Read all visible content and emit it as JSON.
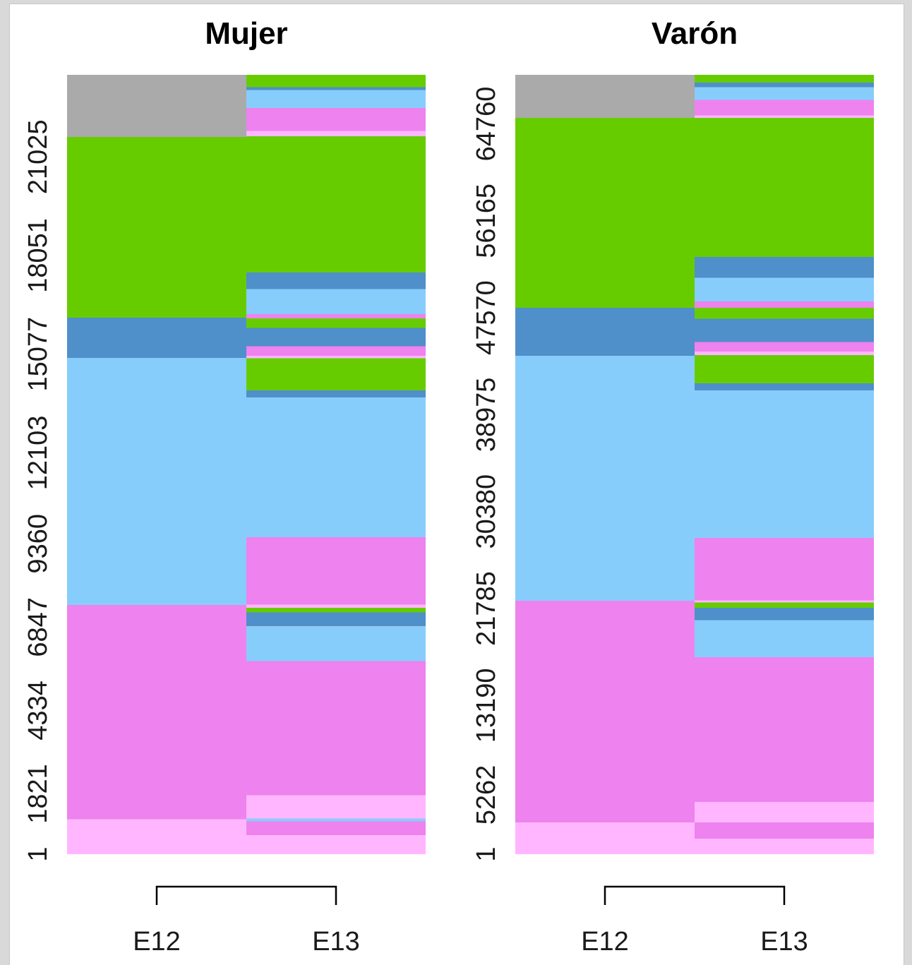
{
  "colors": {
    "gray": "#aaaaaa",
    "green": "#66cc00",
    "blue": "#4f8fca",
    "lightblue": "#87cdfc",
    "pink": "#ee82ee",
    "lightpink": "#ffb6ff"
  },
  "chart_data": [
    {
      "type": "sequence-index-plot",
      "title": "Mujer",
      "categories": [
        "E12",
        "E13"
      ],
      "ylim": [
        1,
        23499
      ],
      "y_ticks": [
        "1",
        "1821",
        "4334",
        "6847",
        "9360",
        "12103",
        "15077",
        "18051",
        "21025"
      ],
      "grid": false,
      "columns": [
        {
          "label": "E12",
          "segments": [
            {
              "state": "lightpink",
              "from": 1,
              "to": 1050
            },
            {
              "state": "pink",
              "from": 1050,
              "to": 7510
            },
            {
              "state": "lightblue",
              "from": 7510,
              "to": 14960
            },
            {
              "state": "blue",
              "from": 14960,
              "to": 16180
            },
            {
              "state": "green",
              "from": 16180,
              "to": 21630
            },
            {
              "state": "gray",
              "from": 21630,
              "to": 23499
            }
          ]
        },
        {
          "label": "E13",
          "segments": [
            {
              "state": "lightpink",
              "from": 1,
              "to": 580
            },
            {
              "state": "pink",
              "from": 580,
              "to": 990
            },
            {
              "state": "lightblue",
              "from": 990,
              "to": 1080
            },
            {
              "state": "lightpink",
              "from": 1080,
              "to": 1780
            },
            {
              "state": "pink",
              "from": 1780,
              "to": 5820
            },
            {
              "state": "lightblue",
              "from": 5820,
              "to": 6860
            },
            {
              "state": "blue",
              "from": 6860,
              "to": 7290
            },
            {
              "state": "green",
              "from": 7290,
              "to": 7430
            },
            {
              "state": "lightpink",
              "from": 7430,
              "to": 7530
            },
            {
              "state": "pink",
              "from": 7530,
              "to": 9560
            },
            {
              "state": "lightblue",
              "from": 9560,
              "to": 13770
            },
            {
              "state": "blue",
              "from": 13770,
              "to": 13980
            },
            {
              "state": "green",
              "from": 13980,
              "to": 14950
            },
            {
              "state": "lightpink",
              "from": 14950,
              "to": 15030
            },
            {
              "state": "pink",
              "from": 15030,
              "to": 15310
            },
            {
              "state": "blue",
              "from": 15310,
              "to": 15870
            },
            {
              "state": "green",
              "from": 15870,
              "to": 16160
            },
            {
              "state": "pink",
              "from": 16160,
              "to": 16280
            },
            {
              "state": "lightblue",
              "from": 16280,
              "to": 17040
            },
            {
              "state": "blue",
              "from": 17040,
              "to": 17540
            },
            {
              "state": "green",
              "from": 17540,
              "to": 21650
            },
            {
              "state": "lightpink",
              "from": 21650,
              "to": 21810
            },
            {
              "state": "pink",
              "from": 21810,
              "to": 22500
            },
            {
              "state": "lightblue",
              "from": 22500,
              "to": 23040
            },
            {
              "state": "blue",
              "from": 23040,
              "to": 23130
            },
            {
              "state": "green",
              "from": 23130,
              "to": 23499
            }
          ]
        }
      ]
    },
    {
      "type": "sequence-index-plot",
      "title": "Varón",
      "categories": [
        "E12",
        "E13"
      ],
      "ylim": [
        1,
        69110
      ],
      "y_ticks": [
        "1",
        "5262",
        "13190",
        "21785",
        "30380",
        "38975",
        "47570",
        "56165",
        "64760"
      ],
      "grid": false,
      "columns": [
        {
          "label": "E12",
          "segments": [
            {
              "state": "lightpink",
              "from": 1,
              "to": 2810
            },
            {
              "state": "pink",
              "from": 2810,
              "to": 22460
            },
            {
              "state": "lightblue",
              "from": 22460,
              "to": 44200
            },
            {
              "state": "blue",
              "from": 44200,
              "to": 48450
            },
            {
              "state": "green",
              "from": 48450,
              "to": 65280
            },
            {
              "state": "gray",
              "from": 65280,
              "to": 69110
            }
          ]
        },
        {
          "label": "E13",
          "segments": [
            {
              "state": "lightpink",
              "from": 1,
              "to": 1380
            },
            {
              "state": "pink",
              "from": 1380,
              "to": 2810
            },
            {
              "state": "lightpink",
              "from": 2810,
              "to": 4620
            },
            {
              "state": "pink",
              "from": 4620,
              "to": 17480
            },
            {
              "state": "lightblue",
              "from": 17480,
              "to": 20760
            },
            {
              "state": "blue",
              "from": 20760,
              "to": 21850
            },
            {
              "state": "green",
              "from": 21850,
              "to": 22310
            },
            {
              "state": "lightpink",
              "from": 22310,
              "to": 22500
            },
            {
              "state": "pink",
              "from": 22500,
              "to": 28030
            },
            {
              "state": "lightblue",
              "from": 28030,
              "to": 41130
            },
            {
              "state": "blue",
              "from": 41130,
              "to": 41760
            },
            {
              "state": "green",
              "from": 41760,
              "to": 44250
            },
            {
              "state": "lightpink",
              "from": 44250,
              "to": 44580
            },
            {
              "state": "pink",
              "from": 44580,
              "to": 45420
            },
            {
              "state": "blue",
              "from": 45420,
              "to": 47470
            },
            {
              "state": "green",
              "from": 47470,
              "to": 48450
            },
            {
              "state": "pink",
              "from": 48450,
              "to": 49010
            },
            {
              "state": "lightblue",
              "from": 49010,
              "to": 51110
            },
            {
              "state": "blue",
              "from": 51110,
              "to": 52970
            },
            {
              "state": "green",
              "from": 52970,
              "to": 65280
            },
            {
              "state": "lightpink",
              "from": 65280,
              "to": 65500
            },
            {
              "state": "pink",
              "from": 65500,
              "to": 66900
            },
            {
              "state": "lightblue",
              "from": 66900,
              "to": 68030
            },
            {
              "state": "blue",
              "from": 68030,
              "to": 68420
            },
            {
              "state": "green",
              "from": 68420,
              "to": 69110
            }
          ]
        }
      ]
    }
  ]
}
